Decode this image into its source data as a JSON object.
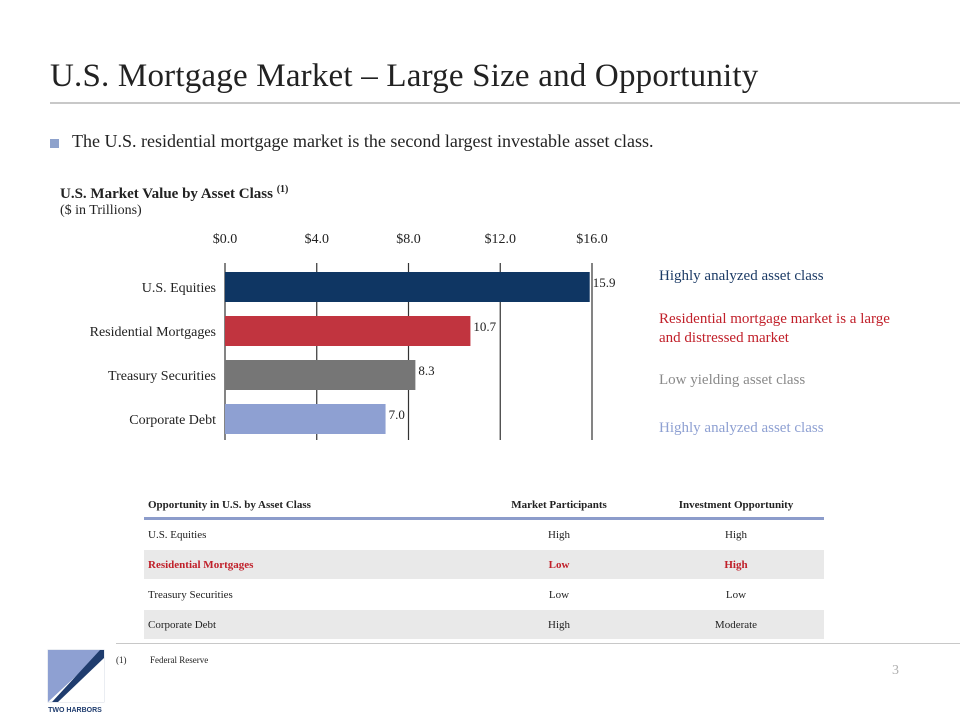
{
  "slide": {
    "title": "U.S. Mortgage Market – Large Size and Opportunity",
    "bullet": "The U.S. residential mortgage market is the second largest investable asset class.",
    "page_number": "3"
  },
  "chart": {
    "title": "U.S. Market Value by Asset Class",
    "title_note": "(1)",
    "subtitle": "($ in Trillions)"
  },
  "chart_data": {
    "type": "bar",
    "orientation": "horizontal",
    "categories": [
      "U.S. Equities",
      "Residential Mortgages",
      "Treasury Securities",
      "Corporate Debt"
    ],
    "values": [
      15.9,
      10.7,
      8.3,
      7.0
    ],
    "value_labels": [
      "15.9",
      "10.7",
      "8.3",
      "7.0"
    ],
    "bar_colors": [
      "#0f3663",
      "#c1343f",
      "#767676",
      "#8ea0d2"
    ],
    "xlim": [
      0,
      16
    ],
    "xticks": [
      0,
      4,
      8,
      12,
      16
    ],
    "xtick_labels": [
      "$0.0",
      "$4.0",
      "$8.0",
      "$12.0",
      "$16.0"
    ],
    "axis_position": "top",
    "grid": "vertical",
    "title": "U.S. Market Value by Asset Class",
    "subtitle": "($ in Trillions)"
  },
  "callouts": [
    {
      "text": "Highly analyzed asset class",
      "color": "#1c3b66"
    },
    {
      "text": "Residential mortgage market is a large and distressed market",
      "color": "#c1202a"
    },
    {
      "text": "Low yielding asset class",
      "color": "#8a8a8a"
    },
    {
      "text": "Highly analyzed asset class",
      "color": "#8ea0d2"
    }
  ],
  "table": {
    "headers": [
      "Opportunity in U.S. by Asset Class",
      "Market Participants",
      "Investment Opportunity"
    ],
    "rows": [
      {
        "asset": "U.S. Equities",
        "participants": "High",
        "opportunity": "High"
      },
      {
        "asset": "Residential Mortgages",
        "participants": "Low",
        "opportunity": "High"
      },
      {
        "asset": "Treasury Securities",
        "participants": "Low",
        "opportunity": "Low"
      },
      {
        "asset": "Corporate Debt",
        "participants": "High",
        "opportunity": "Moderate"
      }
    ]
  },
  "footnote": {
    "number": "(1)",
    "text": "Federal Reserve"
  },
  "logo": {
    "text": "TWO HARBORS"
  }
}
